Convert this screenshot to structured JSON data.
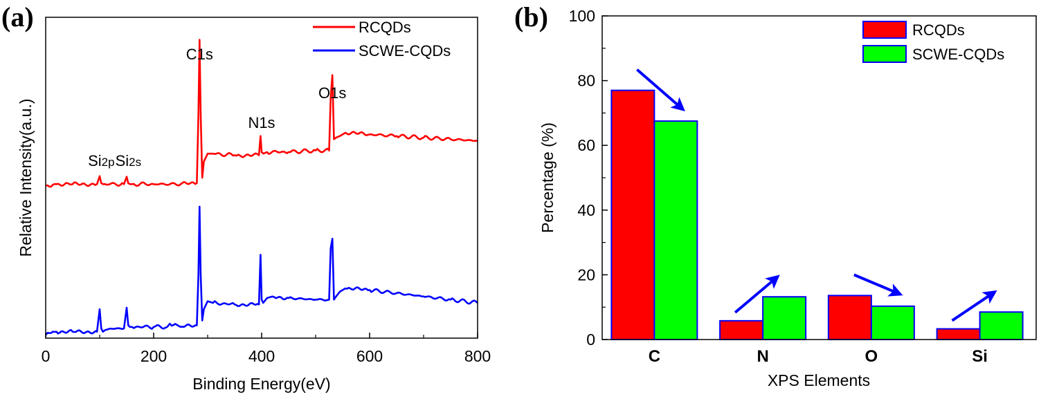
{
  "chart_data": [
    {
      "panel": "(a)",
      "type": "line",
      "title": "",
      "xlabel": "Binding Energy(eV)",
      "ylabel": "Relative Intensity(a.u.)",
      "xlim": [
        0,
        800
      ],
      "ylim": [
        0,
        100
      ],
      "x_ticks": [
        "0",
        "200",
        "400",
        "600",
        "800"
      ],
      "x_minor_ticks": [
        100,
        300,
        500,
        700
      ],
      "y_ticks": [],
      "grid": false,
      "legend_position": "top-right",
      "series": [
        {
          "name": "RCQDs",
          "color": "#ff0000",
          "x": [
            0,
            20,
            50,
            95,
            100,
            103,
            106,
            110,
            145,
            150,
            153,
            156,
            160,
            200,
            250,
            280,
            283,
            285,
            287,
            290,
            293,
            300,
            310,
            350,
            395,
            398,
            400,
            403,
            410,
            450,
            500,
            525,
            528,
            531,
            534,
            538,
            545,
            555,
            600,
            650,
            700,
            750,
            800
          ],
          "y": [
            47.5,
            48,
            48,
            48,
            50.5,
            48.3,
            48,
            48,
            48,
            50.3,
            48.3,
            48,
            48,
            48,
            48,
            48.3,
            70,
            93,
            70,
            50,
            55,
            57.5,
            57.5,
            57,
            57,
            63,
            58,
            57.5,
            58,
            58,
            58.5,
            58.5,
            75,
            82,
            62,
            62.5,
            63,
            64,
            63.5,
            63,
            62.5,
            62,
            61.5
          ]
        },
        {
          "name": "SCWE-CQDs",
          "color": "#0000ff",
          "x": [
            0,
            20,
            50,
            95,
            100,
            103,
            106,
            110,
            120,
            145,
            150,
            153,
            156,
            160,
            200,
            225,
            230,
            250,
            280,
            283,
            285,
            287,
            290,
            293,
            300,
            310,
            350,
            395,
            398,
            400,
            403,
            410,
            420,
            450,
            500,
            525,
            528,
            531,
            534,
            538,
            545,
            555,
            600,
            650,
            700,
            750,
            800
          ],
          "y": [
            1,
            2,
            2,
            2,
            9,
            3,
            2,
            2.5,
            3,
            3,
            9.5,
            4,
            3.5,
            3.5,
            3.5,
            3.5,
            4.5,
            3.5,
            4,
            20,
            41,
            20,
            5.5,
            9,
            11.5,
            11,
            10.5,
            10.5,
            26,
            12,
            11,
            12.5,
            13,
            12.5,
            12,
            12,
            28,
            31,
            12,
            13,
            14.5,
            15.5,
            15,
            14,
            13,
            12,
            11
          ]
        }
      ],
      "annotations": [
        {
          "text": "Si2p",
          "main": "Si",
          "sub": "2p",
          "x": 103
        },
        {
          "text": "Si2s",
          "main": "Si",
          "sub": "2s",
          "x": 153
        },
        {
          "text": "C1s",
          "x": 285
        },
        {
          "text": "N1s",
          "x": 400
        },
        {
          "text": "O1s",
          "x": 531
        }
      ]
    },
    {
      "panel": "(b)",
      "type": "bar",
      "title": "",
      "xlabel": "XPS Elements",
      "ylabel": "Percentage (%)",
      "ylim": [
        0,
        100
      ],
      "y_ticks": [
        "0",
        "20",
        "40",
        "60",
        "80",
        "100"
      ],
      "y_minor_ticks": [
        10,
        30,
        50,
        70,
        90
      ],
      "grid": false,
      "legend_position": "top-right",
      "categories": [
        "C",
        "N",
        "O",
        "Si"
      ],
      "series": [
        {
          "name": "RCQDs",
          "color": "#ff0000",
          "edge_color": "#0000ff",
          "values": [
            77.0,
            5.8,
            13.6,
            3.3
          ]
        },
        {
          "name": "SCWE-CQDs",
          "color": "#00ff00",
          "edge_color": "#0000ff",
          "values": [
            67.5,
            13.2,
            10.3,
            8.5
          ]
        }
      ],
      "annotations": [
        {
          "type": "arrow",
          "category": "C",
          "direction": "decrease",
          "color": "#0000ff"
        },
        {
          "type": "arrow",
          "category": "N",
          "direction": "increase",
          "color": "#0000ff"
        },
        {
          "type": "arrow",
          "category": "O",
          "direction": "decrease",
          "color": "#0000ff"
        },
        {
          "type": "arrow",
          "category": "Si",
          "direction": "increase",
          "color": "#0000ff"
        }
      ]
    }
  ]
}
